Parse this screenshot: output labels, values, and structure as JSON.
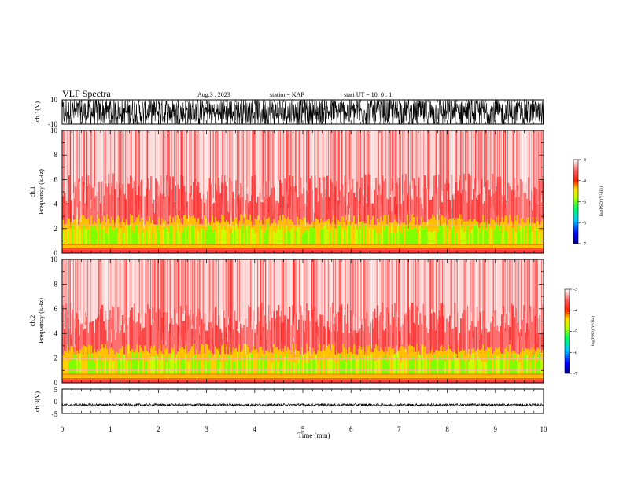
{
  "header": {
    "title": "VLF Spectra",
    "date": "Aug.3  , 2023",
    "station": "station= KAP",
    "start": "start  UT  =   10: 0  : 1"
  },
  "chart_data": [
    {
      "type": "line",
      "panel": "ch1-waveform",
      "ylabel": "ch.1(V)",
      "ylim": [
        -10,
        10
      ],
      "yticks": [
        "10",
        "-10"
      ],
      "xlim": [
        0,
        10
      ],
      "description_values": {
        "amplitude_range_V": [
          -10,
          10
        ]
      }
    },
    {
      "type": "heatmap",
      "panel": "ch1-spectrogram",
      "ylabel": "ch.1\nFrequency  (kHz)",
      "ylim": [
        0,
        10
      ],
      "yticks": [
        "0",
        "2",
        "4",
        "6",
        "8",
        "10"
      ],
      "xlim": [
        0,
        10
      ],
      "colorbar": {
        "label": "log(PSD)(V²/Hz)",
        "range": [
          -7,
          -3
        ],
        "ticks": [
          "-3",
          "-4",
          "-5",
          "-6",
          "-7"
        ]
      },
      "bands_kHz": {
        "strong_low": [
          0,
          3
        ],
        "weak_high": [
          3,
          10
        ]
      }
    },
    {
      "type": "heatmap",
      "panel": "ch2-spectrogram",
      "ylabel": "ch.2\nFrequency  (kHz)",
      "ylim": [
        0,
        10
      ],
      "yticks": [
        "0",
        "2",
        "4",
        "6",
        "8",
        "10"
      ],
      "xlim": [
        0,
        10
      ],
      "colorbar": {
        "label": "log(PSD)(V²/Hz)",
        "range": [
          -7,
          -3
        ],
        "ticks": [
          "-3",
          "-4",
          "-5",
          "-6",
          "-7"
        ]
      },
      "bands_kHz": {
        "strong_low": [
          0,
          3
        ],
        "weak_high": [
          3,
          10
        ]
      }
    },
    {
      "type": "line",
      "panel": "ch3-waveform",
      "ylabel": "ch.3(V)",
      "ylim": [
        -5,
        5
      ],
      "yticks": [
        "5",
        "0",
        "-5"
      ],
      "xlim": [
        0,
        10
      ],
      "xticks": [
        "0",
        "1",
        "2",
        "3",
        "4",
        "5",
        "6",
        "7",
        "8",
        "9",
        "10"
      ],
      "xlabel": "Time  (min)",
      "description_values": {
        "band_center_V": -1.5
      }
    }
  ],
  "colors": {
    "cmap": [
      "#00007f",
      "#0000ff",
      "#00c0ff",
      "#00ff7f",
      "#80ff00",
      "#ffff00",
      "#ff8000",
      "#ff0000",
      "#ff4040",
      "#ffffff"
    ]
  }
}
